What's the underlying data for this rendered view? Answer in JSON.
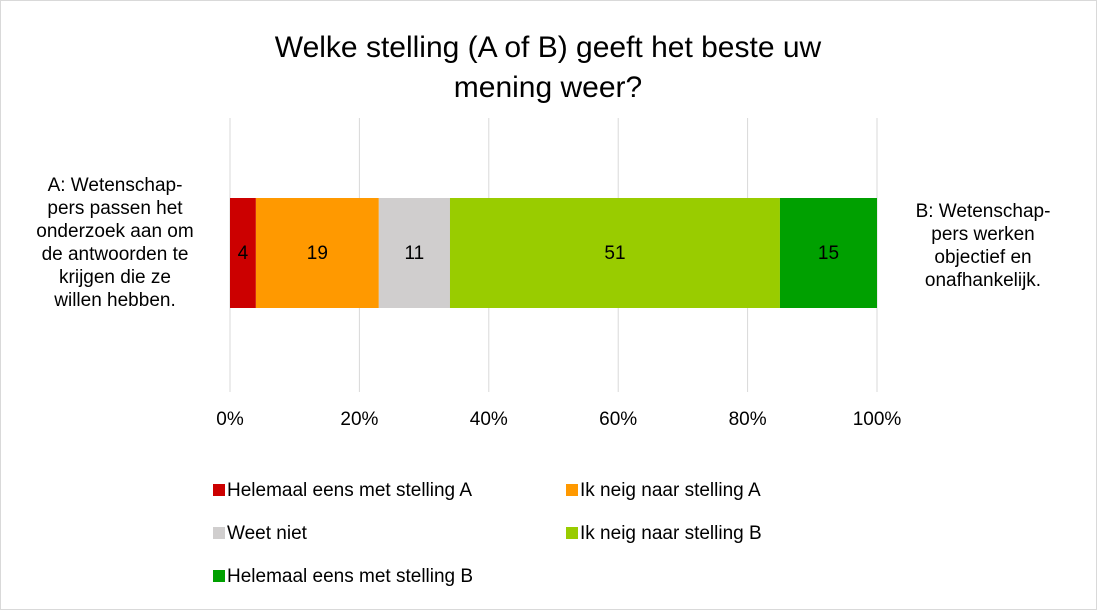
{
  "chart_data": {
    "type": "stacked_barh",
    "title": "Welke stelling (A of B) geeft het beste uw mening weer?",
    "left_label": [
      "A: Wetenschap-",
      "pers passen het",
      "onderzoek aan om",
      "de antwoorden te",
      "krijgen die ze",
      "willen hebben."
    ],
    "right_label": [
      "B: Wetenschap-",
      "pers werken",
      "objectief en",
      "onafhankelijk."
    ],
    "series": [
      {
        "name": "Helemaal eens met stelling A",
        "color": "#cc0000",
        "values": [
          4
        ]
      },
      {
        "name": "Ik neig naar stelling A",
        "color": "#ff9900",
        "values": [
          19
        ]
      },
      {
        "name": "Weet niet",
        "color": "#d0cece",
        "values": [
          11
        ]
      },
      {
        "name": "Ik neig naar stelling B",
        "color": "#99cc00",
        "values": [
          51
        ]
      },
      {
        "name": "Helemaal eens met stelling B",
        "color": "#00a000",
        "values": [
          15
        ]
      }
    ],
    "xlim": [
      0,
      100
    ],
    "xticks": [
      {
        "value": 0,
        "label": "0%"
      },
      {
        "value": 20,
        "label": "20%"
      },
      {
        "value": 40,
        "label": "40%"
      },
      {
        "value": 60,
        "label": "60%"
      },
      {
        "value": 80,
        "label": "80%"
      },
      {
        "value": 100,
        "label": "100%"
      }
    ],
    "grid": true
  }
}
